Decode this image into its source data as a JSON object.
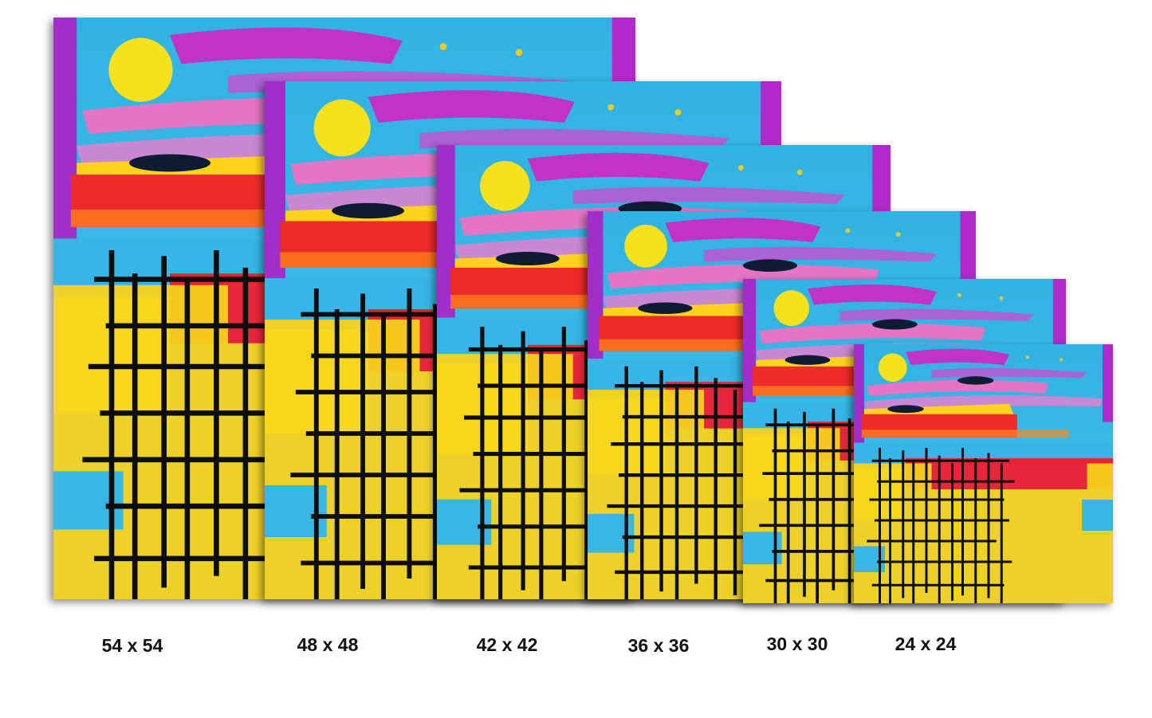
{
  "sizes": [
    "54 x 54",
    "48 x 48",
    "42 x 42",
    "36 x 36",
    "30 x 30",
    "24 x 24"
  ]
}
